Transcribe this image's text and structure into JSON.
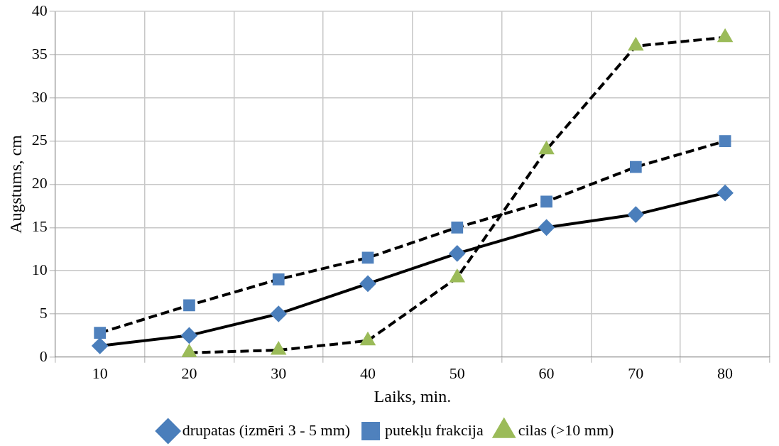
{
  "chart_data": {
    "type": "line",
    "xlabel": "Laiks, min.",
    "ylabel": "Augstums, cm",
    "categories": [
      "10",
      "20",
      "30",
      "40",
      "50",
      "60",
      "70",
      "80"
    ],
    "series": [
      {
        "name": "drupatas (izmēri 3 - 5 mm)",
        "color": "#4a7ebb",
        "marker": "diamond",
        "line_style": "solid",
        "values": [
          1.3,
          2.5,
          5,
          8.5,
          12,
          15,
          16.5,
          19
        ]
      },
      {
        "name": "putekļu frakcija",
        "color": "#4f81bd",
        "marker": "square",
        "line_style": "dashed",
        "values": [
          2.8,
          6,
          9,
          11.5,
          15,
          18,
          22,
          25
        ]
      },
      {
        "name": "cilas (>10 mm)",
        "color": "#9bbb59",
        "marker": "triangle",
        "line_style": "dashed",
        "values": [
          null,
          0.5,
          0.8,
          1.9,
          9.2,
          24,
          36,
          37
        ]
      }
    ],
    "ylim": [
      0,
      40
    ],
    "yticks": [
      0,
      5,
      10,
      15,
      20,
      25,
      30,
      35,
      40
    ],
    "grid": true,
    "legend": "bottom"
  }
}
